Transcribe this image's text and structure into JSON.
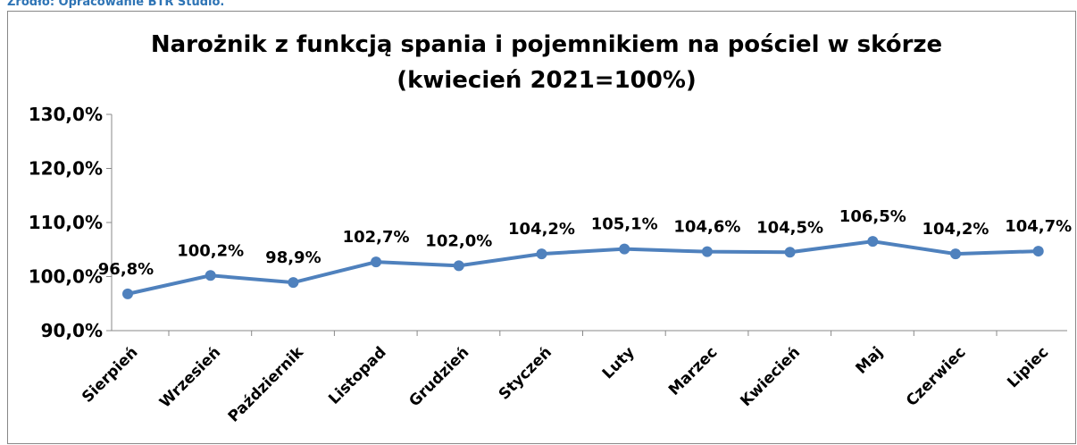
{
  "source": "Źródło: Opracowanie BTR Studio.",
  "chart_data": {
    "type": "line",
    "title": [
      "Narożnik z funkcją spania i pojemnikiem na pościel w skórze",
      "(kwiecień 2021=100%)"
    ],
    "categories": [
      "Sierpień",
      "Wrzesień",
      "Październik",
      "Listopad",
      "Grudzień",
      "Styczeń",
      "Luty",
      "Marzec",
      "Kwiecień",
      "Maj",
      "Czerwiec",
      "Lipiec"
    ],
    "series": [
      {
        "name": "Narożnik",
        "color": "#4f81bd",
        "values": [
          96.8,
          100.2,
          98.9,
          102.7,
          102.0,
          104.2,
          105.1,
          104.6,
          104.5,
          106.5,
          104.2,
          104.7
        ],
        "value_labels": [
          "96,8%",
          "100,2%",
          "98,9%",
          "102,7%",
          "102,0%",
          "104,2%",
          "105,1%",
          "104,6%",
          "104,5%",
          "106,5%",
          "104,2%",
          "104,7%"
        ]
      }
    ],
    "ylim": [
      90,
      130
    ],
    "yticks": [
      {
        "value": 90,
        "label": "90,0%"
      },
      {
        "value": 100,
        "label": "100,0%"
      },
      {
        "value": 110,
        "label": "110,0%"
      },
      {
        "value": 120,
        "label": "120,0%"
      },
      {
        "value": 130,
        "label": "130,0%"
      }
    ]
  }
}
